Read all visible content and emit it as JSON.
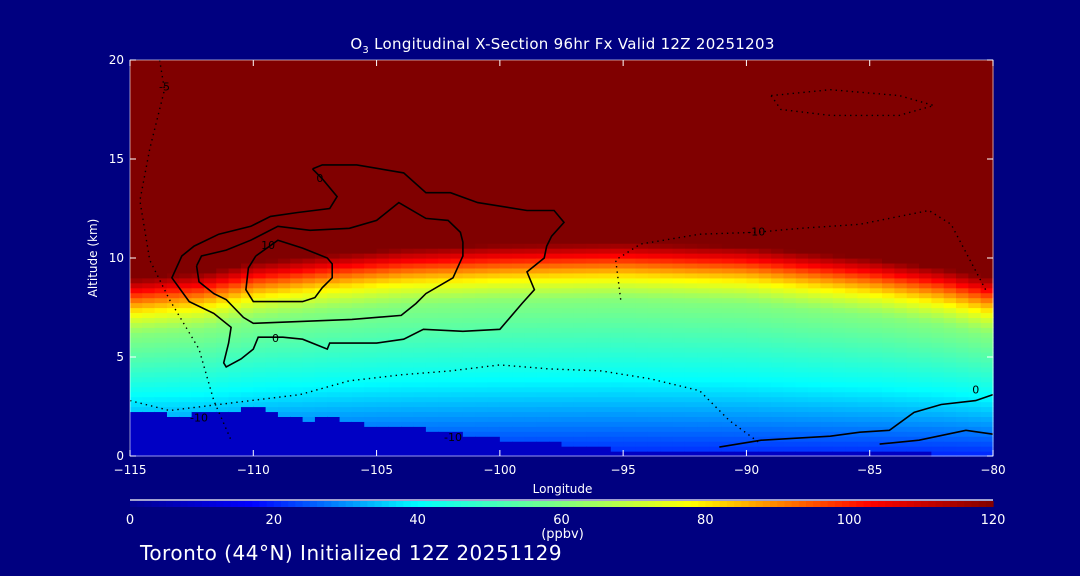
{
  "chart_data": {
    "type": "heatmap",
    "title_main": "O",
    "title_sub": "3",
    "title_rest": " Longitudinal X-Section 96hr  Fx Valid 12Z 20251203",
    "xlabel": "Longitude",
    "ylabel": "Altitude (km)",
    "xlim": [
      -115,
      -80
    ],
    "ylim": [
      0,
      20
    ],
    "xticks": [
      -115,
      -110,
      -105,
      -100,
      -95,
      -90,
      -85,
      -80
    ],
    "xtick_labels": [
      "−115",
      "−110",
      "−105",
      "−100",
      "−95",
      "−90",
      "−85",
      "−80"
    ],
    "yticks": [
      0,
      5,
      10,
      15,
      20
    ],
    "ytick_labels": [
      "0",
      "5",
      "10",
      "15",
      "20"
    ],
    "colorbar": {
      "label": "(ppbv)",
      "range": [
        0,
        120
      ],
      "ticks": [
        0,
        20,
        40,
        60,
        80,
        100,
        120
      ],
      "tick_labels": [
        "0",
        "20",
        "40",
        "60",
        "80",
        "100",
        "120"
      ],
      "stops": [
        [
          0,
          "#000090"
        ],
        [
          17,
          "#0000ff"
        ],
        [
          40,
          "#00ffff"
        ],
        [
          60,
          "#80ff80"
        ],
        [
          78,
          "#ffff00"
        ],
        [
          103,
          "#ff0000"
        ],
        [
          120,
          "#800000"
        ]
      ]
    },
    "field_model": {
      "tropopause_km": [
        [
          -115,
          9.0
        ],
        [
          -112,
          9.3
        ],
        [
          -110,
          9.8
        ],
        [
          -107,
          10.2
        ],
        [
          -104,
          10.5
        ],
        [
          -100,
          10.7
        ],
        [
          -95,
          10.8
        ],
        [
          -90,
          10.6
        ],
        [
          -85,
          10.0
        ],
        [
          -82,
          9.5
        ],
        [
          -80,
          9.0
        ]
      ],
      "terrain_km": [
        [
          -115,
          2.2
        ],
        [
          -113,
          2.1
        ],
        [
          -111,
          2.2
        ],
        [
          -110,
          2.6
        ],
        [
          -108,
          1.8
        ],
        [
          -107,
          2.0
        ],
        [
          -105,
          1.5
        ],
        [
          -103,
          1.4
        ],
        [
          -101,
          1.0
        ],
        [
          -99,
          0.8
        ],
        [
          -95,
          0.3
        ],
        [
          -90,
          0.2
        ],
        [
          -80,
          0.1
        ]
      ],
      "stratosphere_ppbv": 120,
      "surface_ppbv": 20,
      "upper_trop_ppbv": 60
    },
    "contours": [
      {
        "level": 0,
        "style": "solid",
        "points": [
          [
            -107.6,
            14.5
          ],
          [
            -107.2,
            14.7
          ],
          [
            -105.8,
            14.7
          ],
          [
            -103.9,
            14.3
          ],
          [
            -103.0,
            13.3
          ],
          [
            -102.0,
            13.3
          ],
          [
            -100.9,
            12.8
          ],
          [
            -98.9,
            12.4
          ],
          [
            -97.8,
            12.4
          ],
          [
            -97.4,
            11.8
          ],
          [
            -97.9,
            11.1
          ],
          [
            -98.1,
            10.6
          ],
          [
            -98.2,
            10.0
          ],
          [
            -98.9,
            9.3
          ],
          [
            -98.6,
            8.4
          ],
          [
            -99.1,
            7.7
          ],
          [
            -100.0,
            6.4
          ],
          [
            -101.5,
            6.3
          ],
          [
            -103.1,
            6.4
          ],
          [
            -103.9,
            5.9
          ],
          [
            -105.0,
            5.7
          ],
          [
            -106.9,
            5.7
          ],
          [
            -107.0,
            5.4
          ],
          [
            -108.0,
            5.9
          ],
          [
            -108.8,
            6.0
          ],
          [
            -109.8,
            6.0
          ],
          [
            -110.0,
            5.4
          ],
          [
            -110.5,
            4.9
          ],
          [
            -111.1,
            4.5
          ],
          [
            -111.2,
            4.7
          ],
          [
            -111.0,
            5.7
          ],
          [
            -110.9,
            6.5
          ],
          [
            -111.6,
            7.2
          ],
          [
            -112.6,
            7.8
          ],
          [
            -113.3,
            9.0
          ],
          [
            -112.9,
            10.1
          ],
          [
            -112.4,
            10.6
          ],
          [
            -111.4,
            11.2
          ],
          [
            -110.1,
            11.6
          ],
          [
            -109.3,
            12.1
          ],
          [
            -108.2,
            12.3
          ],
          [
            -106.9,
            12.5
          ],
          [
            -106.6,
            13.1
          ],
          [
            -107.2,
            14.0
          ],
          [
            -107.6,
            14.5
          ]
        ]
      },
      {
        "level": 10,
        "style": "solid",
        "points": [
          [
            -112.3,
            9.6
          ],
          [
            -112.1,
            10.1
          ],
          [
            -111.1,
            10.4
          ],
          [
            -110.1,
            10.9
          ],
          [
            -109.0,
            11.6
          ],
          [
            -107.7,
            11.4
          ],
          [
            -106.1,
            11.5
          ],
          [
            -105.0,
            11.9
          ],
          [
            -104.1,
            12.8
          ],
          [
            -103.0,
            12.0
          ],
          [
            -102.1,
            11.9
          ],
          [
            -101.6,
            11.3
          ],
          [
            -101.5,
            10.8
          ],
          [
            -101.5,
            10.1
          ],
          [
            -101.9,
            9.0
          ],
          [
            -103.0,
            8.2
          ],
          [
            -103.4,
            7.7
          ],
          [
            -104.0,
            7.1
          ],
          [
            -106.0,
            6.9
          ],
          [
            -110.0,
            6.7
          ],
          [
            -110.4,
            7.0
          ],
          [
            -111.1,
            7.9
          ],
          [
            -111.6,
            8.2
          ],
          [
            -112.2,
            8.8
          ],
          [
            -112.3,
            9.6
          ]
        ]
      },
      {
        "level": 20,
        "style": "solid",
        "points": [
          [
            -109.9,
            10.1
          ],
          [
            -109.0,
            10.9
          ],
          [
            -108.0,
            10.5
          ],
          [
            -107.0,
            10.0
          ],
          [
            -106.8,
            9.7
          ],
          [
            -106.8,
            9.0
          ],
          [
            -107.2,
            8.5
          ],
          [
            -107.5,
            8.0
          ],
          [
            -108.0,
            7.8
          ],
          [
            -110.0,
            7.8
          ],
          [
            -110.3,
            8.4
          ],
          [
            -110.2,
            9.5
          ],
          [
            -109.9,
            10.1
          ]
        ]
      },
      {
        "level": 0,
        "style": "solid",
        "points": [
          [
            -91.1,
            0.45
          ],
          [
            -89.4,
            0.8
          ],
          [
            -86.6,
            1.0
          ],
          [
            -85.4,
            1.2
          ],
          [
            -84.2,
            1.3
          ],
          [
            -83.2,
            2.2
          ],
          [
            -82.1,
            2.6
          ],
          [
            -80.7,
            2.8
          ],
          [
            -80.0,
            3.1
          ]
        ]
      },
      {
        "level": 10,
        "style": "solid",
        "points": [
          [
            -84.6,
            0.6
          ],
          [
            -83.0,
            0.8
          ],
          [
            -81.1,
            1.3
          ],
          [
            -80.0,
            1.1
          ]
        ]
      },
      {
        "level": -10,
        "style": "dotted",
        "points": [
          [
            -95.1,
            7.9
          ],
          [
            -95.3,
            9.9
          ],
          [
            -94.3,
            10.7
          ],
          [
            -91.9,
            11.2
          ],
          [
            -89.6,
            11.3
          ],
          [
            -87.8,
            11.5
          ],
          [
            -85.4,
            11.7
          ],
          [
            -82.6,
            12.4
          ],
          [
            -81.7,
            11.7
          ],
          [
            -80.3,
            8.4
          ]
        ]
      },
      {
        "level": -10,
        "style": "dotted",
        "points": [
          [
            -115.0,
            2.8
          ],
          [
            -113.4,
            2.3
          ],
          [
            -110.1,
            2.8
          ],
          [
            -108.1,
            3.1
          ],
          [
            -106.1,
            3.8
          ],
          [
            -104.0,
            4.1
          ],
          [
            -102.0,
            4.3
          ],
          [
            -100.0,
            4.6
          ],
          [
            -98.0,
            4.4
          ],
          [
            -95.9,
            4.3
          ],
          [
            -93.9,
            3.9
          ],
          [
            -91.9,
            3.3
          ],
          [
            -90.7,
            1.8
          ],
          [
            -89.4,
            0.6
          ]
        ]
      },
      {
        "level": -5,
        "style": "dotted",
        "points": [
          [
            -113.8,
            20.0
          ],
          [
            -113.6,
            18.5
          ],
          [
            -114.2,
            15.5
          ],
          [
            -114.6,
            12.9
          ],
          [
            -114.2,
            9.9
          ],
          [
            -113.4,
            7.9
          ],
          [
            -112.2,
            5.4
          ],
          [
            -111.6,
            2.8
          ],
          [
            -110.9,
            0.8
          ]
        ]
      },
      {
        "level": -10,
        "style": "dotted",
        "points": [
          [
            -89.0,
            18.2
          ],
          [
            -86.6,
            18.5
          ],
          [
            -83.8,
            18.2
          ],
          [
            -82.4,
            17.7
          ],
          [
            -83.8,
            17.2
          ],
          [
            -86.6,
            17.2
          ],
          [
            -88.6,
            17.5
          ],
          [
            -89.0,
            18.2
          ]
        ]
      }
    ],
    "contour_labels": [
      {
        "text": "0",
        "lon": -107.3,
        "alt": 14.0
      },
      {
        "text": "0",
        "lon": -109.1,
        "alt": 5.9
      },
      {
        "text": "0",
        "lon": -80.7,
        "alt": 3.3
      },
      {
        "text": "10",
        "lon": -109.4,
        "alt": 10.6
      },
      {
        "text": "-10",
        "lon": -89.6,
        "alt": 11.3
      },
      {
        "text": "-10",
        "lon": -112.2,
        "alt": 1.9
      },
      {
        "text": "-10",
        "lon": -101.9,
        "alt": 0.9
      },
      {
        "text": "-5",
        "lon": -113.6,
        "alt": 18.6
      }
    ]
  },
  "footer": "Toronto (44°N) Initialized 12Z 20251129",
  "colors": {
    "background": "#000080",
    "text": "#ffffff",
    "contour": "#000000"
  }
}
